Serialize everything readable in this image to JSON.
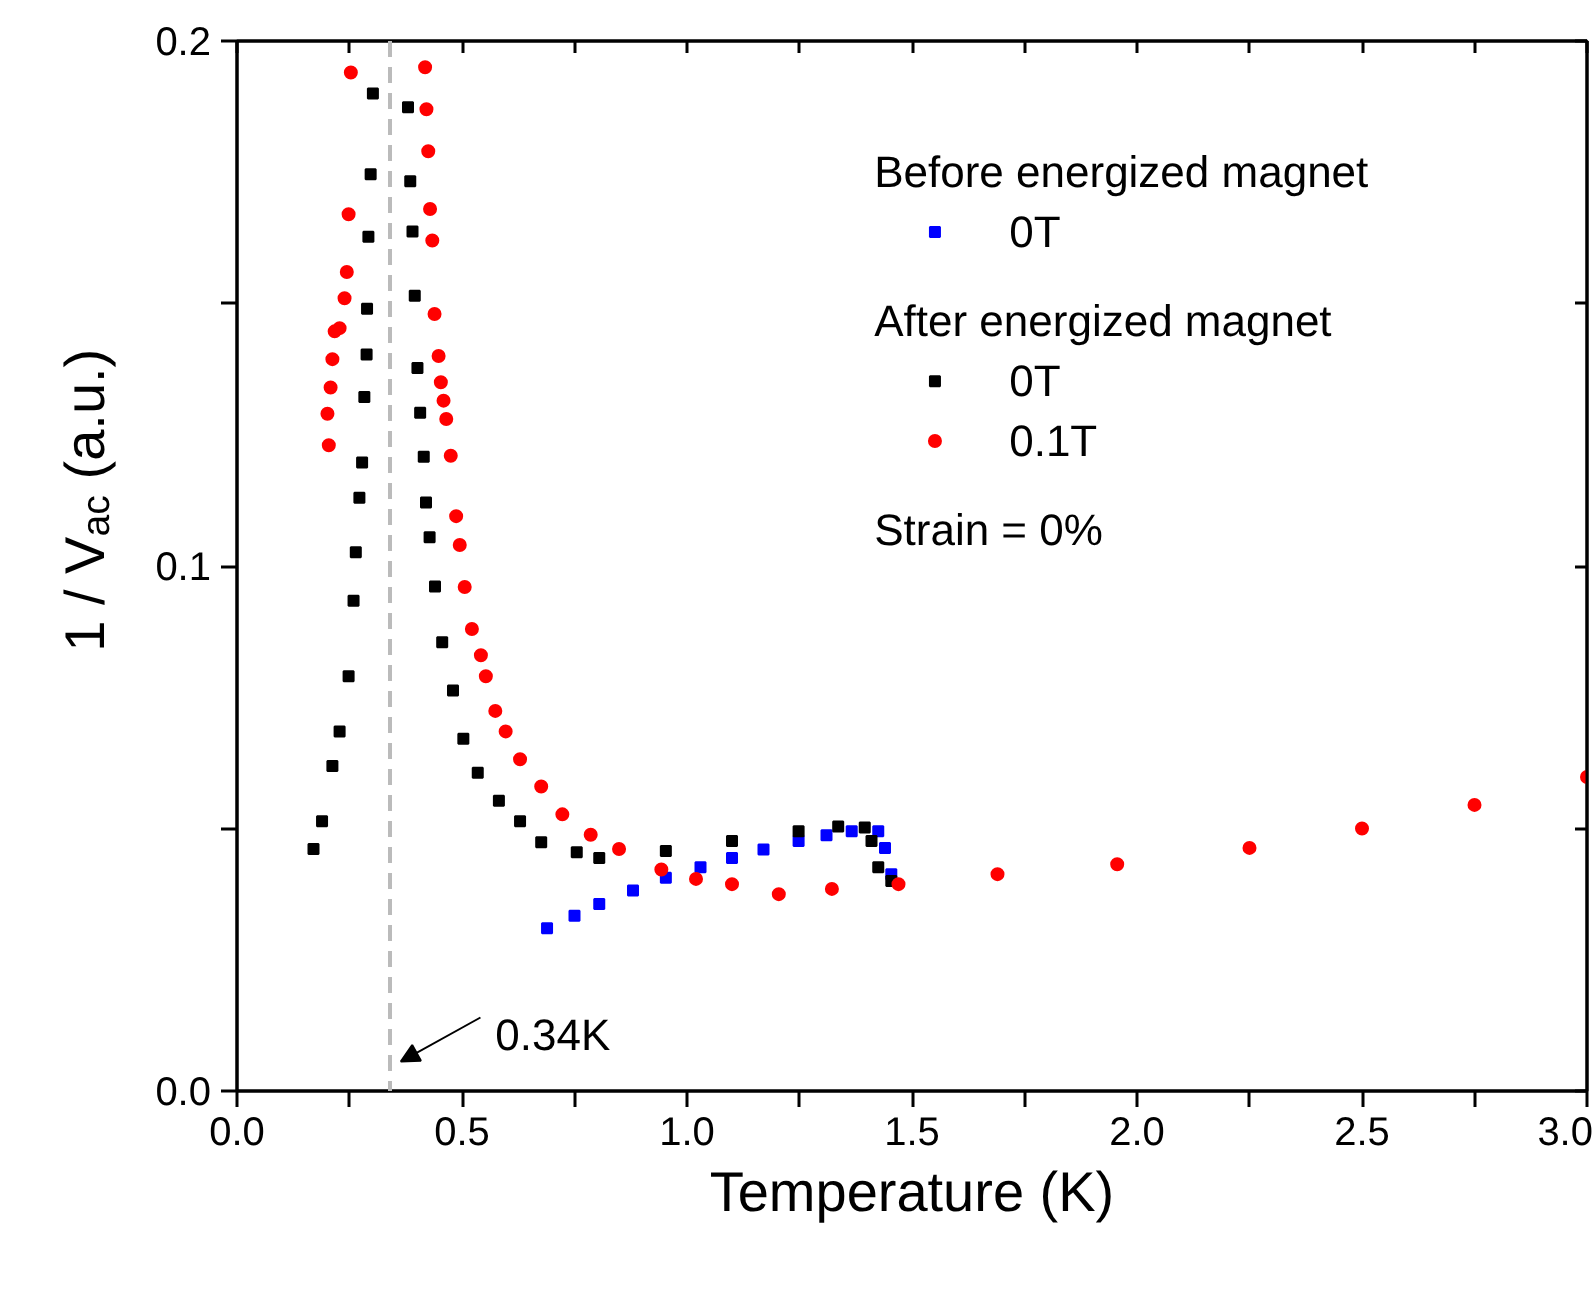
{
  "chart_data": {
    "type": "scatter",
    "xlabel": "Temperature (K)",
    "ylabel": "1 / V$_{ac}$ (a.u.)",
    "xlim": [
      0,
      3
    ],
    "ylim": [
      0,
      0.2
    ],
    "xticks": [
      {
        "value": 0,
        "label": "0.0"
      },
      {
        "value": 0.25,
        "label": null
      },
      {
        "value": 0.5,
        "label": "0.5"
      },
      {
        "value": 0.75,
        "label": null
      },
      {
        "value": 1,
        "label": "1.0"
      },
      {
        "value": 1.25,
        "label": null
      },
      {
        "value": 1.5,
        "label": "1.5"
      },
      {
        "value": 1.75,
        "label": null
      },
      {
        "value": 2,
        "label": "2.0"
      },
      {
        "value": 2.25,
        "label": null
      },
      {
        "value": 2.5,
        "label": "2.5"
      },
      {
        "value": 2.75,
        "label": null
      },
      {
        "value": 3,
        "label": "3.0"
      }
    ],
    "yticks": [
      {
        "value": 0,
        "label": "0.0"
      },
      {
        "value": 0.05,
        "label": null
      },
      {
        "value": 0.1,
        "label": "0.1"
      },
      {
        "value": 0.15,
        "label": null
      },
      {
        "value": 0.2,
        "label": "0.2"
      }
    ],
    "grid": false,
    "legend": "top right",
    "annotations": [
      "Before energized magnet",
      "After energized magnet",
      "Strain = 0%"
    ],
    "ref_lines": [
      {
        "axis": "x",
        "value": 0.34,
        "label": "0.34K",
        "color": "#bbbbbb",
        "line_style": "dashed"
      }
    ],
    "series": [
      {
        "name": "0T",
        "color": "#0000ff",
        "marker": "square",
        "x": [
          0.689,
          0.75,
          0.805,
          0.88,
          0.953,
          1.03,
          1.1,
          1.17,
          1.248,
          1.31,
          1.366,
          1.425,
          1.44,
          1.454
        ],
        "values": [
          0.031,
          0.0334,
          0.0356,
          0.0382,
          0.0406,
          0.0426,
          0.0444,
          0.046,
          0.0476,
          0.0487,
          0.0495,
          0.0495,
          0.0463,
          0.0413
        ]
      },
      {
        "name": "0T",
        "color": "#000000",
        "marker": "square",
        "x": [
          0.17,
          0.189,
          0.212,
          0.228,
          0.248,
          0.259,
          0.264,
          0.272,
          0.278,
          0.283,
          0.288,
          0.289,
          0.292,
          0.297,
          0.302,
          0.38,
          0.385,
          0.39,
          0.395,
          0.401,
          0.407,
          0.415,
          0.42,
          0.428,
          0.44,
          0.456,
          0.48,
          0.503,
          0.535,
          0.582,
          0.629,
          0.676,
          0.755,
          0.805,
          0.953,
          1.1,
          1.248,
          1.336,
          1.395,
          1.41,
          1.425,
          1.454
        ],
        "values": [
          0.0461,
          0.0514,
          0.0619,
          0.0685,
          0.079,
          0.0934,
          0.1026,
          0.113,
          0.1197,
          0.1322,
          0.1403,
          0.149,
          0.1627,
          0.1746,
          0.19,
          0.1874,
          0.1733,
          0.1637,
          0.1515,
          0.1377,
          0.1292,
          0.1208,
          0.1121,
          0.1055,
          0.0961,
          0.0855,
          0.0763,
          0.0671,
          0.0606,
          0.0553,
          0.0514,
          0.0474,
          0.0455,
          0.0444,
          0.0457,
          0.0476,
          0.0495,
          0.0504,
          0.0502,
          0.0476,
          0.0426,
          0.04
        ]
      },
      {
        "name": "0.1T",
        "color": "#ff0000",
        "marker": "circle",
        "x": [
          0.201,
          0.204,
          0.208,
          0.212,
          0.217,
          0.228,
          0.239,
          0.244,
          0.248,
          0.253,
          0.418,
          0.421,
          0.425,
          0.429,
          0.434,
          0.439,
          0.448,
          0.453,
          0.459,
          0.465,
          0.475,
          0.487,
          0.495,
          0.506,
          0.522,
          0.542,
          0.553,
          0.574,
          0.597,
          0.629,
          0.676,
          0.723,
          0.786,
          0.849,
          0.943,
          1.02,
          1.1,
          1.204,
          1.322,
          1.47,
          1.69,
          1.956,
          2.25,
          2.5,
          2.75,
          3.0
        ],
        "values": [
          0.129,
          0.123,
          0.134,
          0.1394,
          0.1447,
          0.1453,
          0.151,
          0.156,
          0.167,
          0.194,
          0.195,
          0.187,
          0.179,
          0.168,
          0.162,
          0.148,
          0.14,
          0.135,
          0.1315,
          0.128,
          0.121,
          0.1095,
          0.104,
          0.096,
          0.088,
          0.083,
          0.079,
          0.0724,
          0.0685,
          0.0632,
          0.058,
          0.0527,
          0.0488,
          0.0461,
          0.0422,
          0.0404,
          0.0394,
          0.0375,
          0.0385,
          0.0394,
          0.0413,
          0.0432,
          0.0463,
          0.05,
          0.0545,
          0.0598
        ]
      }
    ]
  }
}
